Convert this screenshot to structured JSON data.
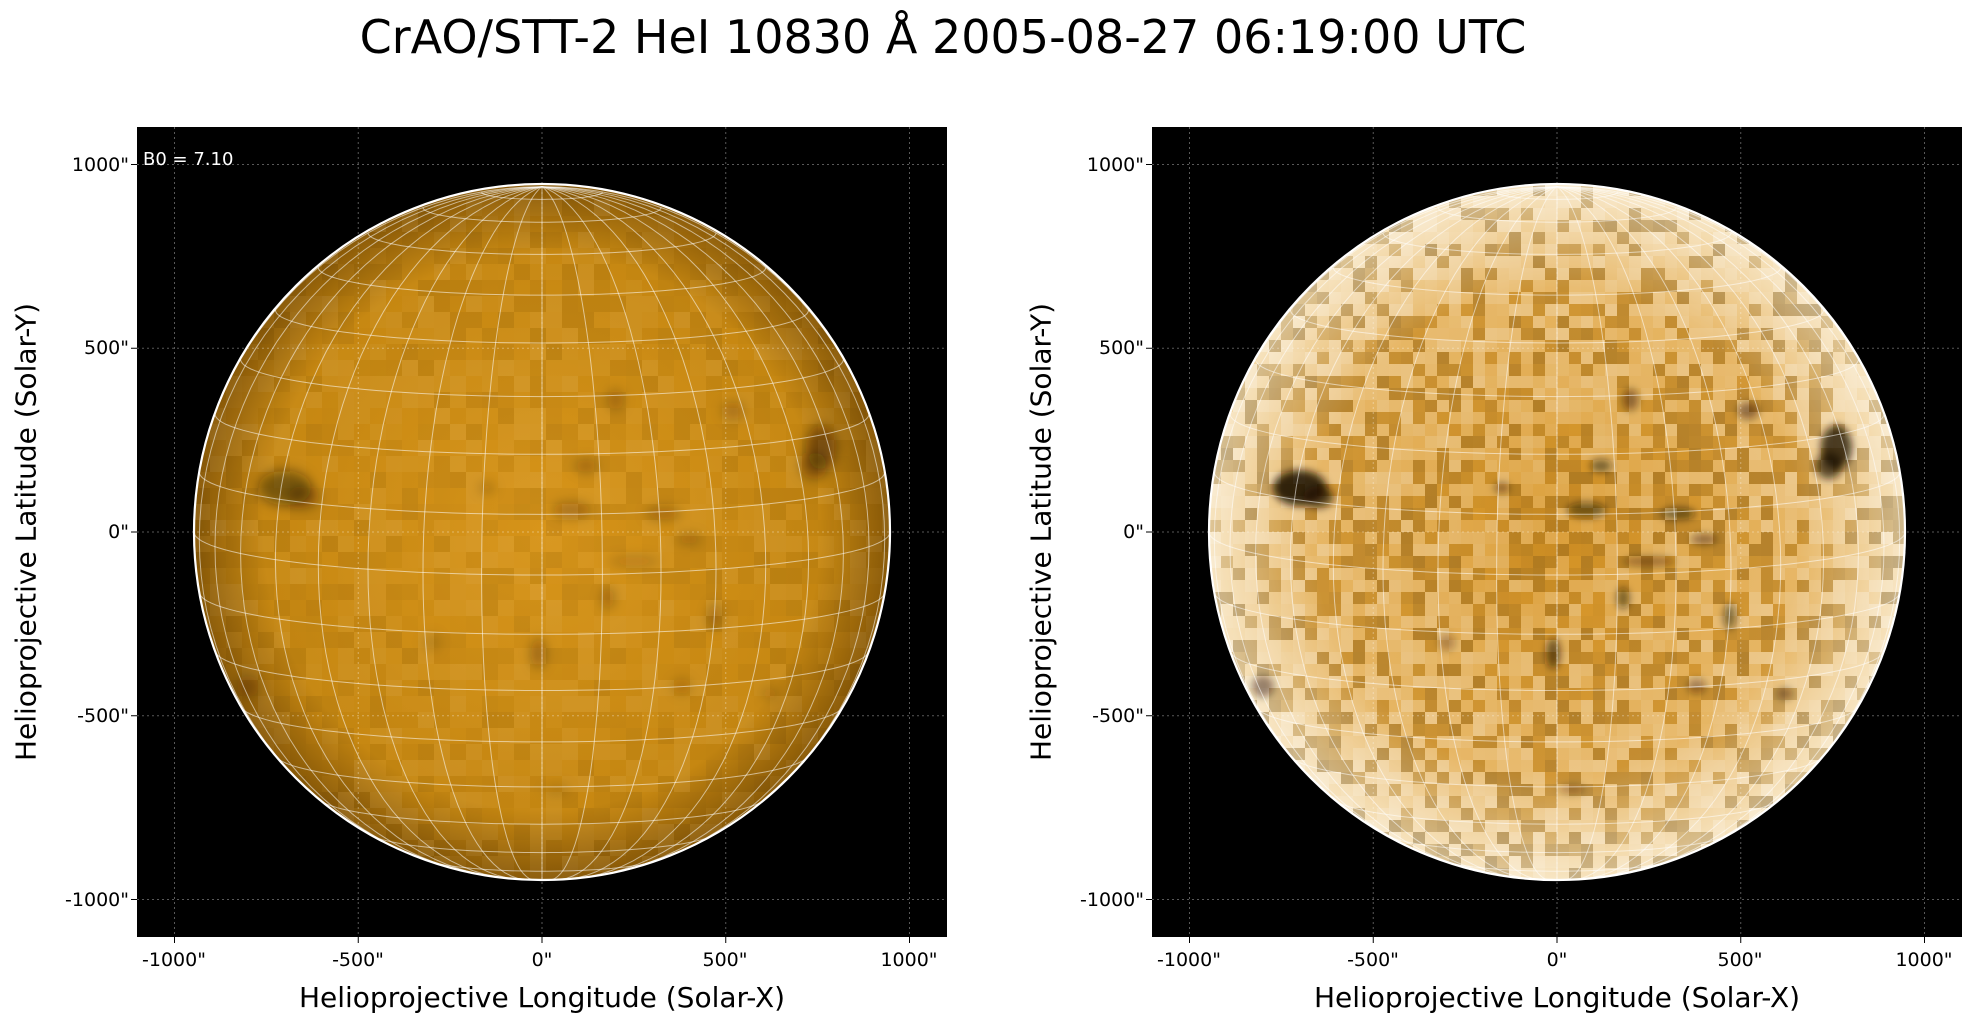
{
  "title": "CrAO/STT-2 HeI 10830 Å 2005-08-27 06:19:00 UTC",
  "colors": {
    "sun_base": "#c98a12",
    "background": "#000000",
    "limb": "#ffffff"
  },
  "panels": [
    {
      "name": "left",
      "annotation": "B0 = 7.10",
      "x_axis_label": "Helioprojective Longitude (Solar-X)",
      "y_axis_label": "Helioprojective Latitude (Solar-Y)",
      "x_ticks": [
        "-1000\"",
        "-500\"",
        "0\"",
        "500\"",
        "1000\""
      ],
      "y_ticks": [
        "1000\"",
        "500\"",
        "0\"",
        "-500\"",
        "-1000\""
      ],
      "style": "raw"
    },
    {
      "name": "right",
      "annotation": "",
      "x_axis_label": "Helioprojective Longitude (Solar-X)",
      "y_axis_label": "Helioprojective Latitude (Solar-Y)",
      "x_ticks": [
        "-1000\"",
        "-500\"",
        "0\"",
        "500\"",
        "1000\""
      ],
      "y_ticks": [
        "1000\"",
        "500\"",
        "0\"",
        "-500\"",
        "-1000\""
      ],
      "style": "enhanced"
    }
  ]
}
